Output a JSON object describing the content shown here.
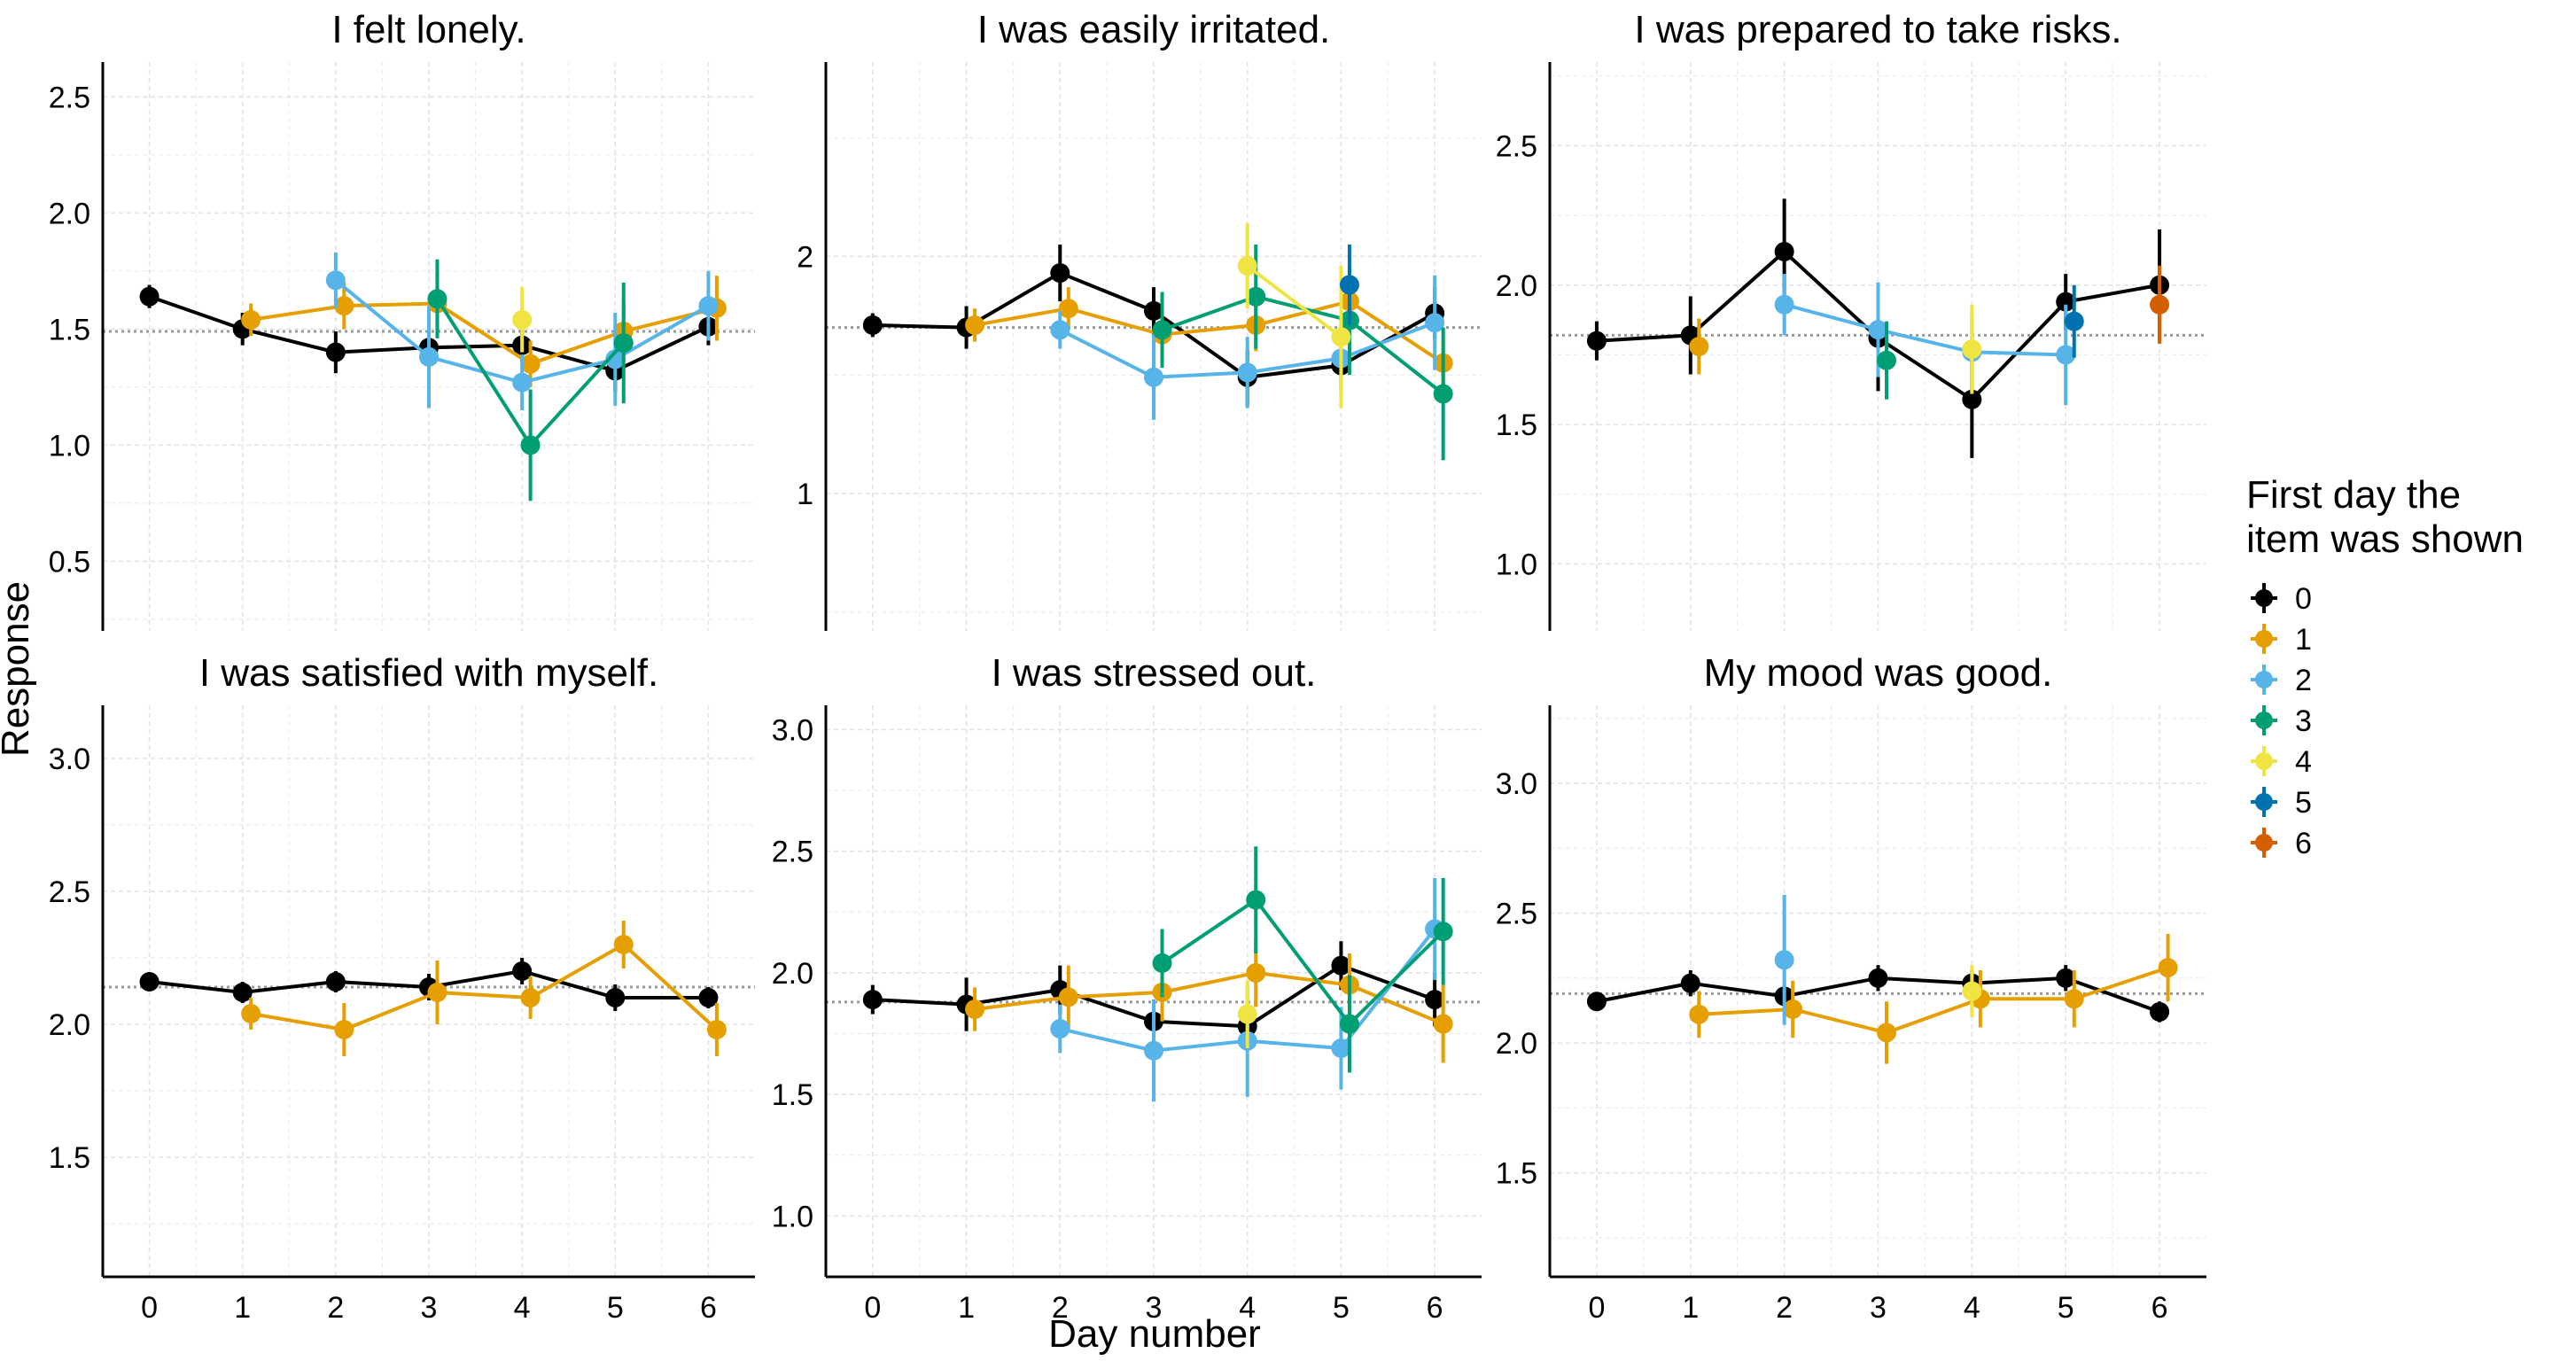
{
  "chart_data": {
    "type": "line",
    "xlabel": "Day number",
    "ylabel": "Response",
    "x": [
      0,
      1,
      2,
      3,
      4,
      5,
      6
    ],
    "x_ticks": [
      "0",
      "1",
      "2",
      "3",
      "4",
      "5",
      "6"
    ],
    "grid": true,
    "legend": {
      "title_lines": [
        "First day the",
        "item was shown"
      ],
      "placement": "right",
      "entries": [
        {
          "label": "0",
          "color": "#000000"
        },
        {
          "label": "1",
          "color": "#E69F00"
        },
        {
          "label": "2",
          "color": "#56B4E9"
        },
        {
          "label": "3",
          "color": "#009E73"
        },
        {
          "label": "4",
          "color": "#F0E442"
        },
        {
          "label": "5",
          "color": "#0072B2"
        },
        {
          "label": "6",
          "color": "#D55E00"
        }
      ]
    },
    "panels": [
      {
        "title": "I felt lonely.",
        "ylim": [
          0.2,
          2.65
        ],
        "yticks": [
          0.5,
          1.0,
          1.5,
          2.0,
          2.5
        ],
        "ytick_labels": [
          "0.5",
          "1.0",
          "1.5",
          "2.0",
          "2.5"
        ],
        "ref_line": 1.49,
        "series": [
          {
            "group": "0",
            "points": [
              [
                0,
                1.64,
                0.05
              ],
              [
                1,
                1.5,
                0.07
              ],
              [
                2,
                1.4,
                0.09
              ],
              [
                3,
                1.42,
                0.1
              ],
              [
                4,
                1.43,
                0.07
              ],
              [
                5,
                1.32,
                0.09
              ],
              [
                6,
                1.51,
                0.08
              ]
            ]
          },
          {
            "group": "1",
            "points": [
              [
                1,
                1.54,
                0.07
              ],
              [
                2,
                1.6,
                0.1
              ],
              [
                3,
                1.61,
                0.14
              ],
              [
                4,
                1.35,
                0.1
              ],
              [
                5,
                1.49,
                0.13
              ],
              [
                6,
                1.59,
                0.14
              ]
            ]
          },
          {
            "group": "2",
            "points": [
              [
                2,
                1.71,
                0.12
              ],
              [
                3,
                1.38,
                0.22
              ],
              [
                4,
                1.27,
                0.12
              ],
              [
                5,
                1.37,
                0.2
              ],
              [
                6,
                1.6,
                0.15
              ]
            ]
          },
          {
            "group": "3",
            "points": [
              [
                3,
                1.63,
                0.17
              ],
              [
                4,
                1.0,
                0.24
              ],
              [
                5,
                1.44,
                0.26
              ]
            ]
          },
          {
            "group": "4",
            "points": [
              [
                4,
                1.54,
                0.14
              ]
            ]
          }
        ]
      },
      {
        "title": "I was easily irritated.",
        "ylim": [
          0.42,
          2.82
        ],
        "yticks": [
          1,
          2
        ],
        "ytick_labels": [
          "1",
          "2"
        ],
        "ref_line": 1.7,
        "series": [
          {
            "group": "0",
            "points": [
              [
                0,
                1.71,
                0.05
              ],
              [
                1,
                1.7,
                0.09
              ],
              [
                2,
                1.93,
                0.12
              ],
              [
                3,
                1.77,
                0.1
              ],
              [
                4,
                1.49,
                0.12
              ],
              [
                5,
                1.54,
                0.1
              ],
              [
                6,
                1.76,
                0.11
              ]
            ]
          },
          {
            "group": "1",
            "points": [
              [
                1,
                1.71,
                0.07
              ],
              [
                2,
                1.78,
                0.09
              ],
              [
                3,
                1.67,
                0.09
              ],
              [
                4,
                1.71,
                0.11
              ],
              [
                5,
                1.81,
                0.1
              ],
              [
                6,
                1.55,
                0.1
              ]
            ]
          },
          {
            "group": "2",
            "points": [
              [
                2,
                1.69,
                0.08
              ],
              [
                3,
                1.49,
                0.18
              ],
              [
                4,
                1.51,
                0.15
              ],
              [
                5,
                1.57,
                0.17
              ],
              [
                6,
                1.72,
                0.2
              ]
            ]
          },
          {
            "group": "3",
            "points": [
              [
                3,
                1.69,
                0.16
              ],
              [
                4,
                1.83,
                0.22
              ],
              [
                5,
                1.73,
                0.23
              ],
              [
                6,
                1.42,
                0.28
              ]
            ]
          },
          {
            "group": "4",
            "points": [
              [
                4,
                1.96,
                0.18
              ],
              [
                5,
                1.66,
                0.3
              ]
            ]
          },
          {
            "group": "5",
            "points": [
              [
                5,
                1.88,
                0.17
              ]
            ]
          }
        ]
      },
      {
        "title": "I was prepared to take risks.",
        "ylim": [
          0.76,
          2.8
        ],
        "yticks": [
          1.0,
          1.5,
          2.0,
          2.5
        ],
        "ytick_labels": [
          "1.0",
          "1.5",
          "2.0",
          "2.5"
        ],
        "ref_line": 1.82,
        "series": [
          {
            "group": "0",
            "points": [
              [
                0,
                1.8,
                0.07
              ],
              [
                1,
                1.82,
                0.14
              ],
              [
                2,
                2.12,
                0.19
              ],
              [
                3,
                1.81,
                0.19
              ],
              [
                4,
                1.59,
                0.21
              ],
              [
                5,
                1.94,
                0.1
              ],
              [
                6,
                2.0,
                0.2
              ]
            ]
          },
          {
            "group": "1",
            "points": [
              [
                1,
                1.78,
                0.1
              ]
            ]
          },
          {
            "group": "2",
            "points": [
              [
                2,
                1.93,
                0.11
              ],
              [
                3,
                1.84,
                0.17
              ],
              [
                4,
                1.76,
                0.14
              ],
              [
                5,
                1.75,
                0.18
              ]
            ]
          },
          {
            "group": "3",
            "points": [
              [
                3,
                1.73,
                0.14
              ]
            ]
          },
          {
            "group": "4",
            "points": [
              [
                4,
                1.77,
                0.16
              ]
            ]
          },
          {
            "group": "5",
            "points": [
              [
                5,
                1.87,
                0.13
              ]
            ]
          },
          {
            "group": "6",
            "points": [
              [
                6,
                1.93,
                0.14
              ]
            ]
          }
        ]
      },
      {
        "title": "I was satisfied with myself.",
        "ylim": [
          1.05,
          3.2
        ],
        "yticks": [
          1.5,
          2.0,
          2.5,
          3.0
        ],
        "ytick_labels": [
          "1.5",
          "2.0",
          "2.5",
          "3.0"
        ],
        "ref_line": 2.14,
        "series": [
          {
            "group": "0",
            "points": [
              [
                0,
                2.16,
                0.03
              ],
              [
                1,
                2.12,
                0.04
              ],
              [
                2,
                2.16,
                0.04
              ],
              [
                3,
                2.14,
                0.05
              ],
              [
                4,
                2.2,
                0.05
              ],
              [
                5,
                2.1,
                0.05
              ],
              [
                6,
                2.1,
                0.04
              ]
            ]
          },
          {
            "group": "1",
            "points": [
              [
                1,
                2.04,
                0.06
              ],
              [
                2,
                1.98,
                0.1
              ],
              [
                3,
                2.12,
                0.12
              ],
              [
                4,
                2.1,
                0.08
              ],
              [
                5,
                2.3,
                0.09
              ],
              [
                6,
                1.98,
                0.1
              ]
            ]
          }
        ]
      },
      {
        "title": "I was stressed out.",
        "ylim": [
          0.75,
          3.1
        ],
        "yticks": [
          1.0,
          1.5,
          2.0,
          2.5,
          3.0
        ],
        "ytick_labels": [
          "1.0",
          "1.5",
          "2.0",
          "2.5",
          "3.0"
        ],
        "ref_line": 1.88,
        "series": [
          {
            "group": "0",
            "points": [
              [
                0,
                1.89,
                0.06
              ],
              [
                1,
                1.87,
                0.11
              ],
              [
                2,
                1.93,
                0.1
              ],
              [
                3,
                1.8,
                0.09
              ],
              [
                4,
                1.78,
                0.09
              ],
              [
                5,
                2.03,
                0.1
              ],
              [
                6,
                1.89,
                0.11
              ]
            ]
          },
          {
            "group": "1",
            "points": [
              [
                1,
                1.85,
                0.09
              ],
              [
                2,
                1.9,
                0.13
              ],
              [
                3,
                1.92,
                0.12
              ],
              [
                4,
                2.0,
                0.14
              ],
              [
                5,
                1.95,
                0.13
              ],
              [
                6,
                1.79,
                0.16
              ]
            ]
          },
          {
            "group": "2",
            "points": [
              [
                2,
                1.77,
                0.1
              ],
              [
                3,
                1.68,
                0.21
              ],
              [
                4,
                1.72,
                0.23
              ],
              [
                5,
                1.69,
                0.17
              ],
              [
                6,
                2.18,
                0.21
              ]
            ]
          },
          {
            "group": "3",
            "points": [
              [
                3,
                2.04,
                0.14
              ],
              [
                4,
                2.3,
                0.22
              ],
              [
                5,
                1.79,
                0.2
              ],
              [
                6,
                2.17,
                0.22
              ]
            ]
          },
          {
            "group": "4",
            "points": [
              [
                4,
                1.83,
                0.14
              ]
            ]
          }
        ]
      },
      {
        "title": "My mood was good.",
        "ylim": [
          1.1,
          3.3
        ],
        "yticks": [
          1.5,
          2.0,
          2.5,
          3.0
        ],
        "ytick_labels": [
          "1.5",
          "2.0",
          "2.5",
          "3.0"
        ],
        "ref_line": 2.19,
        "series": [
          {
            "group": "0",
            "points": [
              [
                0,
                2.16,
                0.03
              ],
              [
                1,
                2.23,
                0.05
              ],
              [
                2,
                2.18,
                0.04
              ],
              [
                3,
                2.25,
                0.05
              ],
              [
                4,
                2.23,
                0.05
              ],
              [
                5,
                2.25,
                0.05
              ],
              [
                6,
                2.12,
                0.04
              ]
            ]
          },
          {
            "group": "1",
            "points": [
              [
                1,
                2.11,
                0.09
              ],
              [
                2,
                2.13,
                0.11
              ],
              [
                3,
                2.04,
                0.12
              ],
              [
                4,
                2.17,
                0.11
              ],
              [
                5,
                2.17,
                0.11
              ],
              [
                6,
                2.29,
                0.13
              ]
            ]
          },
          {
            "group": "2",
            "points": [
              [
                2,
                2.32,
                0.25
              ]
            ]
          },
          {
            "group": "4",
            "points": [
              [
                4,
                2.2,
                0.1
              ]
            ]
          }
        ]
      }
    ]
  }
}
